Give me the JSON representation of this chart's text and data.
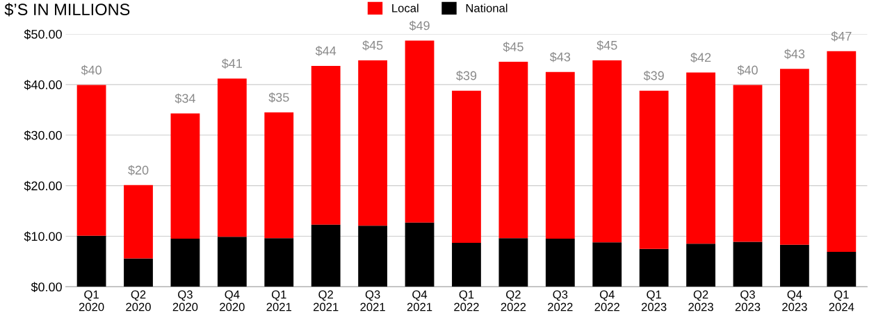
{
  "chart_data": {
    "type": "bar",
    "title": "$’S IN MILLIONS",
    "stacked": true,
    "categories": [
      "Q1\n2020",
      "Q2\n2020",
      "Q3\n2020",
      "Q4\n2020",
      "Q1\n2021",
      "Q2\n2021",
      "Q3\n2021",
      "Q4\n2021",
      "Q1\n2022",
      "Q2\n2022",
      "Q3\n2022",
      "Q4\n2022",
      "Q1\n2023",
      "Q2\n2023",
      "Q3\n2023",
      "Q4\n2023",
      "Q1\n2024"
    ],
    "series": [
      {
        "name": "National",
        "color": "#000000",
        "values": [
          10.1,
          5.6,
          9.5,
          9.9,
          9.6,
          12.3,
          12.1,
          12.7,
          8.7,
          9.6,
          9.5,
          8.8,
          7.5,
          8.5,
          8.9,
          8.3,
          6.9
        ]
      },
      {
        "name": "Local",
        "color": "#ff0000",
        "values": [
          29.8,
          14.5,
          24.8,
          31.3,
          24.9,
          31.4,
          32.7,
          36.0,
          30.1,
          34.9,
          33.0,
          36.0,
          31.3,
          33.9,
          31.0,
          34.8,
          39.7
        ]
      }
    ],
    "totals": [
      "$40",
      "$20",
      "$34",
      "$41",
      "$35",
      "$44",
      "$45",
      "$49",
      "$39",
      "$45",
      "$43",
      "$45",
      "$39",
      "$42",
      "$40",
      "$43",
      "$47"
    ],
    "ylim": [
      0,
      50
    ],
    "yticks": [
      {
        "value": 0,
        "label": "$0.00"
      },
      {
        "value": 10,
        "label": "$10.00"
      },
      {
        "value": 20,
        "label": "$20.00"
      },
      {
        "value": 30,
        "label": "$30.00"
      },
      {
        "value": 40,
        "label": "$40.00"
      },
      {
        "value": 50,
        "label": "$50.00"
      }
    ],
    "grid": "y",
    "legend": "top"
  }
}
